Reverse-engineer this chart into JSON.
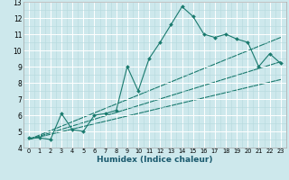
{
  "xlabel": "Humidex (Indice chaleur)",
  "bg_color": "#cde8ec",
  "grid_major_color": "#ffffff",
  "grid_minor_color": "#b5d8dc",
  "line_color": "#1a7a6e",
  "marker": "D",
  "marker_size": 2.0,
  "xlim": [
    -0.5,
    23.5
  ],
  "ylim": [
    4,
    13
  ],
  "xticks": [
    0,
    1,
    2,
    3,
    4,
    5,
    6,
    7,
    8,
    9,
    10,
    11,
    12,
    13,
    14,
    15,
    16,
    17,
    18,
    19,
    20,
    21,
    22,
    23
  ],
  "yticks": [
    4,
    5,
    6,
    7,
    8,
    9,
    10,
    11,
    12,
    13
  ],
  "zigzag_line": [
    4.6,
    4.6,
    4.5,
    6.1,
    5.1,
    5.0,
    6.0,
    6.1,
    6.3,
    9.0,
    7.5,
    9.5,
    10.5,
    11.6,
    12.7,
    12.1,
    11.0,
    10.8,
    11.0,
    10.7,
    10.5,
    9.0,
    9.8,
    9.2
  ],
  "trend_lines": [
    {
      "x": [
        0,
        23
      ],
      "y": [
        4.5,
        10.8
      ]
    },
    {
      "x": [
        0,
        23
      ],
      "y": [
        4.5,
        9.3
      ]
    },
    {
      "x": [
        0,
        23
      ],
      "y": [
        4.5,
        8.2
      ]
    }
  ]
}
